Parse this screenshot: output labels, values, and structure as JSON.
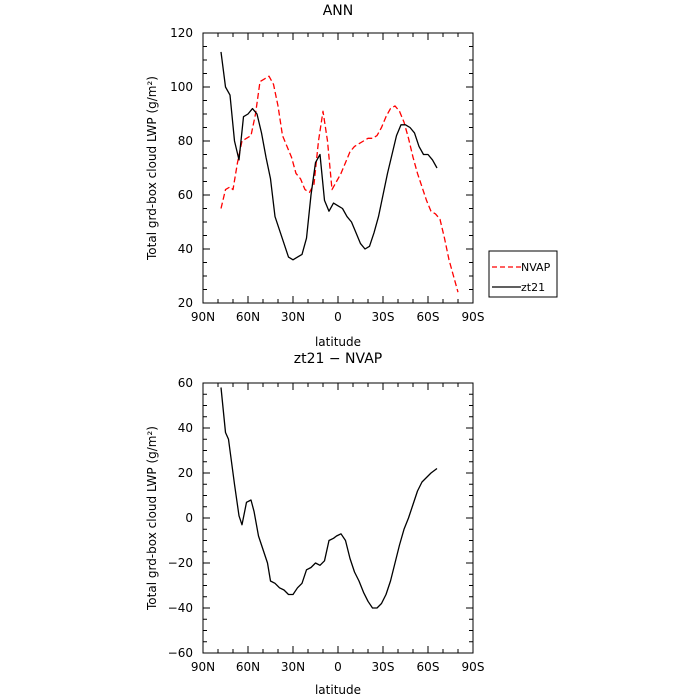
{
  "chart_data": [
    {
      "type": "line",
      "title": "ANN",
      "xlabel": "latitude",
      "ylabel": "Total grd-box cloud LWP (g/m²)",
      "xlim": [
        90,
        -90
      ],
      "ylim": [
        20,
        120
      ],
      "x_ticks": [
        90,
        60,
        30,
        0,
        -30,
        -60,
        -90
      ],
      "x_tick_labels": [
        "90N",
        "60N",
        "30N",
        "0",
        "30S",
        "60S",
        "90S"
      ],
      "y_ticks": [
        20,
        40,
        60,
        80,
        100,
        120
      ],
      "y_tick_labels": [
        "20",
        "40",
        "60",
        "80",
        "100",
        "120"
      ],
      "legend": {
        "placement": "right"
      },
      "series": [
        {
          "name": "NVAP",
          "color": "#ff0000",
          "style": "dashed",
          "x": [
            78,
            75,
            72,
            70,
            67,
            64,
            61,
            58,
            55,
            52,
            49,
            46,
            43,
            40,
            37,
            34,
            31,
            28,
            25,
            22,
            19,
            16,
            13,
            10,
            7,
            4,
            1,
            -2,
            -5,
            -8,
            -11,
            -14,
            -17,
            -20,
            -23,
            -26,
            -29,
            -32,
            -35,
            -38,
            -41,
            -44,
            -47,
            -50,
            -53,
            -56,
            -59,
            -62,
            -65,
            -68,
            -71,
            -74,
            -77,
            -80
          ],
          "values": [
            55,
            62,
            63,
            62,
            72,
            80,
            81,
            82,
            90,
            102,
            103,
            104,
            101,
            93,
            82,
            78,
            74,
            68,
            66,
            62,
            61,
            64,
            80,
            91,
            80,
            62,
            65,
            68,
            72,
            76,
            78,
            79,
            80,
            81,
            81,
            82,
            85,
            89,
            92,
            93,
            91,
            87,
            81,
            74,
            68,
            63,
            58,
            54,
            53,
            51,
            44,
            36,
            30,
            24
          ]
        },
        {
          "name": "zt21",
          "color": "#000000",
          "style": "solid",
          "x": [
            78,
            75,
            72,
            69,
            66,
            63,
            60,
            57,
            54,
            51,
            48,
            45,
            42,
            39,
            36,
            33,
            30,
            27,
            24,
            21,
            18,
            15,
            12,
            9,
            6,
            3,
            0,
            -3,
            -6,
            -9,
            -12,
            -15,
            -18,
            -21,
            -24,
            -27,
            -30,
            -33,
            -36,
            -39,
            -42,
            -45,
            -48,
            -51,
            -54,
            -57,
            -60,
            -63,
            -66
          ],
          "values": [
            113,
            100,
            97,
            80,
            73,
            89,
            90,
            92,
            90,
            83,
            74,
            66,
            52,
            47,
            42,
            37,
            36,
            37,
            38,
            44,
            60,
            72,
            75,
            58,
            54,
            57,
            56,
            55,
            52,
            50,
            46,
            42,
            40,
            41,
            46,
            52,
            60,
            68,
            75,
            82,
            86,
            86,
            85,
            83,
            78,
            75,
            75,
            73,
            70
          ]
        }
      ]
    },
    {
      "type": "line",
      "title": "zt21 − NVAP",
      "xlabel": "latitude",
      "ylabel": "Total grd-box cloud LWP (g/m²)",
      "xlim": [
        90,
        -90
      ],
      "ylim": [
        -60,
        60
      ],
      "x_ticks": [
        90,
        60,
        30,
        0,
        -30,
        -60,
        -90
      ],
      "x_tick_labels": [
        "90N",
        "60N",
        "30N",
        "0",
        "30S",
        "60S",
        "90S"
      ],
      "y_ticks": [
        -60,
        -40,
        -20,
        0,
        20,
        40,
        60
      ],
      "y_tick_labels": [
        "−60",
        "−40",
        "−20",
        "0",
        "20",
        "40",
        "60"
      ],
      "series": [
        {
          "color": "#000000",
          "style": "solid",
          "x": [
            78,
            75,
            73,
            69,
            66,
            64,
            61,
            58,
            56,
            53,
            50,
            47,
            45,
            42,
            39,
            36,
            33,
            30,
            27,
            24,
            21,
            18,
            15,
            12,
            9,
            6,
            3,
            1,
            -2,
            -5,
            -8,
            -11,
            -14,
            -17,
            -20,
            -23,
            -26,
            -29,
            -32,
            -35,
            -38,
            -41,
            -44,
            -47,
            -50,
            -53,
            -56,
            -59,
            -62,
            -66
          ],
          "values": [
            58,
            38,
            35,
            15,
            1,
            -3,
            7,
            8,
            3,
            -8,
            -14,
            -20,
            -28,
            -29,
            -31,
            -32,
            -34,
            -34,
            -31,
            -29,
            -23,
            -22,
            -20,
            -21,
            -19,
            -10,
            -9,
            -8,
            -7,
            -10,
            -18,
            -24,
            -28,
            -33,
            -37,
            -40,
            -40,
            -38,
            -34,
            -28,
            -20,
            -12,
            -5,
            0,
            6,
            12,
            16,
            18,
            20,
            22
          ]
        }
      ]
    }
  ]
}
